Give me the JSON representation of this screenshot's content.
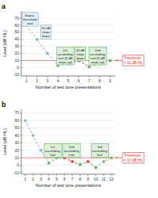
{
  "chart_data": [
    {
      "type": "line",
      "title": "a",
      "xlabel": "Number of test tone presentations",
      "ylabel": "Level (dB HL)",
      "xlim": [
        0.5,
        9.5
      ],
      "ylim": [
        -12,
        80
      ],
      "xticks": [
        1,
        2,
        3,
        4,
        5,
        6,
        7,
        8,
        9
      ],
      "yticks": [
        -10,
        0,
        10,
        20,
        30,
        40,
        50,
        60,
        70
      ],
      "grid": "y",
      "series": [
        {
          "color": "#7ab3d9",
          "marker": "circle",
          "line_style": "dashed",
          "x": [
            1,
            2,
            3,
            4
          ],
          "values": [
            60,
            40,
            20,
            3
          ]
        },
        {
          "color": "#5cb85c",
          "marker": "square",
          "line_style": "dashed",
          "x": [
            4,
            5,
            6
          ],
          "values": [
            3,
            5,
            10
          ]
        },
        {
          "color": "#e83030",
          "marker": "circle",
          "line_style": "dashed",
          "x": [
            6,
            7
          ],
          "values": [
            10,
            1
          ]
        },
        {
          "color": "#5cb85c",
          "marker": "square",
          "line_style": "dashed",
          "x": [
            7,
            8,
            9
          ],
          "values": [
            1,
            5,
            10
          ]
        }
      ],
      "threshold": {
        "y": 10,
        "color": "#e83030",
        "label": "Threshold\n= 10 dB HL"
      },
      "annotations": [
        {
          "text": "Supra-\nthreshold\nstart",
          "x": 1.3,
          "y": 78,
          "color": "#7ab3d9"
        },
        {
          "text": "20 dB\nsteps\ndown",
          "x": 2.85,
          "y": 60,
          "color": "#7ab3d9"
        },
        {
          "text": "1st\nascending\ntrial (5 dB\nsteps up)",
          "x": 4.7,
          "y": 29,
          "color": "#5cb85c"
        },
        {
          "text": "10 dB\nsteps\ndown",
          "x": 6.1,
          "y": 29,
          "color": "#5cb85c"
        },
        {
          "text": "2nd\nascending\ntrial (5 dB\nsteps up)",
          "x": 7.8,
          "y": 29,
          "color": "#5cb85c"
        }
      ]
    },
    {
      "type": "line",
      "title": "b",
      "xlabel": "Number of test tone presentations",
      "ylabel": "Level (dB HL)",
      "xlim": [
        0.5,
        12.5
      ],
      "ylim": [
        -12,
        75
      ],
      "xticks": [
        1,
        2,
        3,
        4,
        5,
        6,
        7,
        8,
        9,
        10,
        11,
        12
      ],
      "yticks": [
        -10,
        0,
        10,
        20,
        30,
        40,
        50,
        60,
        70
      ],
      "grid": "y",
      "series": [
        {
          "color": "#7ab3d9",
          "marker": "circle",
          "line_style": "dashed",
          "x": [
            1,
            2,
            3,
            4
          ],
          "values": [
            60,
            40,
            20,
            3
          ]
        },
        {
          "color": "#5cb85c",
          "marker": "square",
          "line_style": "dashed",
          "x": [
            4,
            5,
            6
          ],
          "values": [
            3,
            10,
            10
          ]
        },
        {
          "color": "#e83030",
          "marker": "circle",
          "line_style": "dashed",
          "x": [
            6,
            7,
            8
          ],
          "values": [
            10,
            5,
            1
          ]
        },
        {
          "color": "#5cb85c",
          "marker": "square",
          "line_style": "dashed",
          "x": [
            8,
            9
          ],
          "values": [
            1,
            5
          ]
        },
        {
          "color": "#e83030",
          "marker": "circle",
          "line_style": "dashed",
          "x": [
            9,
            10
          ],
          "values": [
            5,
            -3
          ]
        },
        {
          "color": "#5cb85c",
          "marker": "square",
          "line_style": "dashed",
          "x": [
            10,
            11,
            12
          ],
          "values": [
            -3,
            5,
            10
          ]
        }
      ],
      "threshold": {
        "y": 10,
        "color": "#e83030",
        "label": "Threshold\n= 10 dB HL"
      },
      "annotations": [
        {
          "text": "1st\nascending\ntrial",
          "x": 4.5,
          "y": 29,
          "color": "#5cb85c"
        },
        {
          "text": "2nd\nascending\ntrial",
          "x": 6.9,
          "y": 29,
          "color": "#5cb85c"
        },
        {
          "text": "3rd\nascending\ntrial",
          "x": 10.5,
          "y": 29,
          "color": "#5cb85c"
        }
      ]
    }
  ]
}
